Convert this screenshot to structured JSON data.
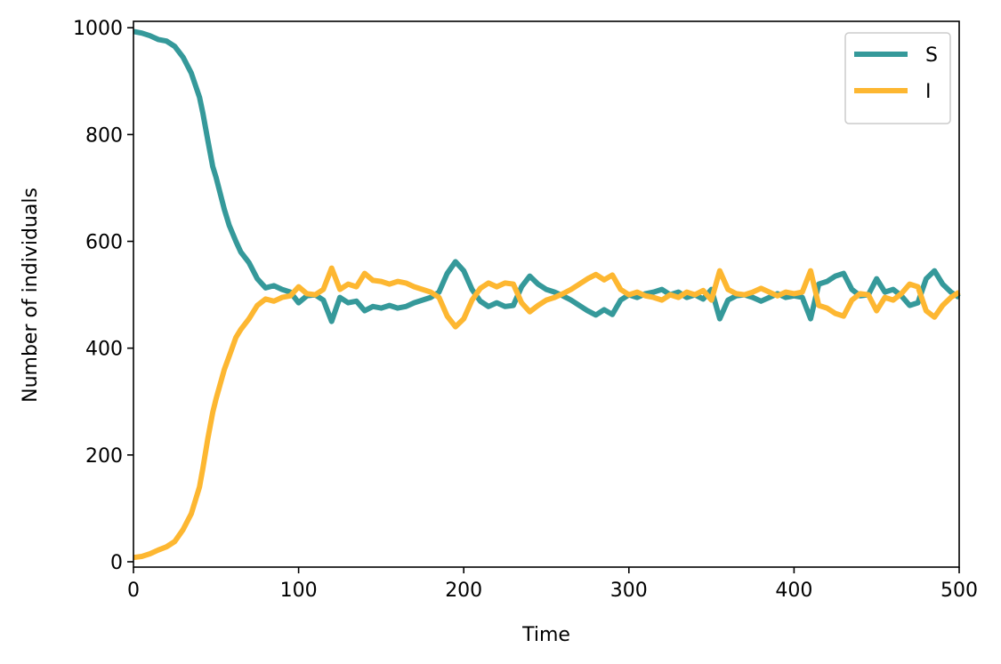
{
  "chart_data": {
    "type": "line",
    "title": "",
    "xlabel": "Time",
    "ylabel": "Number of individuals",
    "xlim": [
      0,
      500
    ],
    "ylim": [
      -10,
      1012
    ],
    "xticks": [
      0,
      100,
      200,
      300,
      400,
      500
    ],
    "yticks": [
      0,
      200,
      400,
      600,
      800,
      1000
    ],
    "grid": false,
    "legend_position": "top-right",
    "series": [
      {
        "name": "S",
        "color": "#35999a",
        "x": [
          0,
          5,
          10,
          15,
          20,
          25,
          30,
          35,
          40,
          42,
          45,
          48,
          50,
          55,
          58,
          62,
          65,
          70,
          75,
          80,
          85,
          90,
          95,
          100,
          105,
          110,
          115,
          120,
          125,
          130,
          135,
          140,
          145,
          150,
          155,
          160,
          165,
          170,
          175,
          180,
          185,
          190,
          195,
          200,
          205,
          210,
          215,
          220,
          225,
          230,
          235,
          240,
          245,
          250,
          255,
          260,
          265,
          270,
          275,
          280,
          285,
          290,
          295,
          300,
          305,
          310,
          315,
          320,
          325,
          330,
          335,
          340,
          345,
          350,
          355,
          360,
          365,
          370,
          375,
          380,
          385,
          390,
          395,
          400,
          405,
          410,
          415,
          420,
          425,
          430,
          435,
          440,
          445,
          450,
          455,
          460,
          465,
          470,
          475,
          480,
          485,
          490,
          495,
          500
        ],
        "y": [
          993,
          990,
          985,
          978,
          975,
          965,
          945,
          915,
          870,
          840,
          790,
          740,
          720,
          660,
          630,
          600,
          580,
          560,
          530,
          513,
          517,
          510,
          505,
          485,
          498,
          500,
          490,
          450,
          495,
          485,
          488,
          470,
          478,
          475,
          480,
          475,
          478,
          485,
          490,
          495,
          505,
          540,
          562,
          545,
          510,
          488,
          478,
          485,
          478,
          480,
          515,
          535,
          520,
          510,
          505,
          498,
          490,
          480,
          470,
          462,
          472,
          463,
          490,
          500,
          495,
          502,
          505,
          510,
          500,
          505,
          495,
          500,
          492,
          510,
          455,
          490,
          498,
          500,
          495,
          488,
          495,
          502,
          495,
          498,
          495,
          455,
          520,
          525,
          535,
          540,
          510,
          498,
          500,
          530,
          505,
          510,
          498,
          480,
          485,
          530,
          545,
          520,
          505,
          495
        ]
      },
      {
        "name": "I",
        "color": "#fdb731",
        "x": [
          0,
          5,
          10,
          15,
          20,
          25,
          30,
          35,
          40,
          42,
          45,
          48,
          50,
          55,
          58,
          62,
          65,
          70,
          75,
          80,
          85,
          90,
          95,
          100,
          105,
          110,
          115,
          120,
          125,
          130,
          135,
          140,
          145,
          150,
          155,
          160,
          165,
          170,
          175,
          180,
          185,
          190,
          195,
          200,
          205,
          210,
          215,
          220,
          225,
          230,
          235,
          240,
          245,
          250,
          255,
          260,
          265,
          270,
          275,
          280,
          285,
          290,
          295,
          300,
          305,
          310,
          315,
          320,
          325,
          330,
          335,
          340,
          345,
          350,
          355,
          360,
          365,
          370,
          375,
          380,
          385,
          390,
          395,
          400,
          405,
          410,
          415,
          420,
          425,
          430,
          435,
          440,
          445,
          450,
          455,
          460,
          465,
          470,
          475,
          480,
          485,
          490,
          495,
          500
        ],
        "y": [
          8,
          10,
          15,
          22,
          28,
          38,
          60,
          90,
          140,
          175,
          230,
          280,
          305,
          360,
          385,
          420,
          435,
          455,
          480,
          492,
          488,
          495,
          498,
          515,
          502,
          500,
          510,
          550,
          510,
          520,
          515,
          540,
          527,
          525,
          520,
          525,
          522,
          515,
          510,
          505,
          495,
          460,
          440,
          455,
          490,
          512,
          522,
          515,
          522,
          520,
          485,
          468,
          480,
          490,
          495,
          502,
          510,
          520,
          530,
          538,
          528,
          537,
          510,
          500,
          505,
          498,
          495,
          490,
          500,
          495,
          505,
          500,
          508,
          490,
          545,
          510,
          502,
          500,
          505,
          512,
          505,
          498,
          505,
          502,
          505,
          545,
          480,
          475,
          465,
          460,
          490,
          502,
          500,
          470,
          495,
          490,
          502,
          520,
          515,
          470,
          458,
          480,
          495,
          505
        ]
      }
    ]
  }
}
